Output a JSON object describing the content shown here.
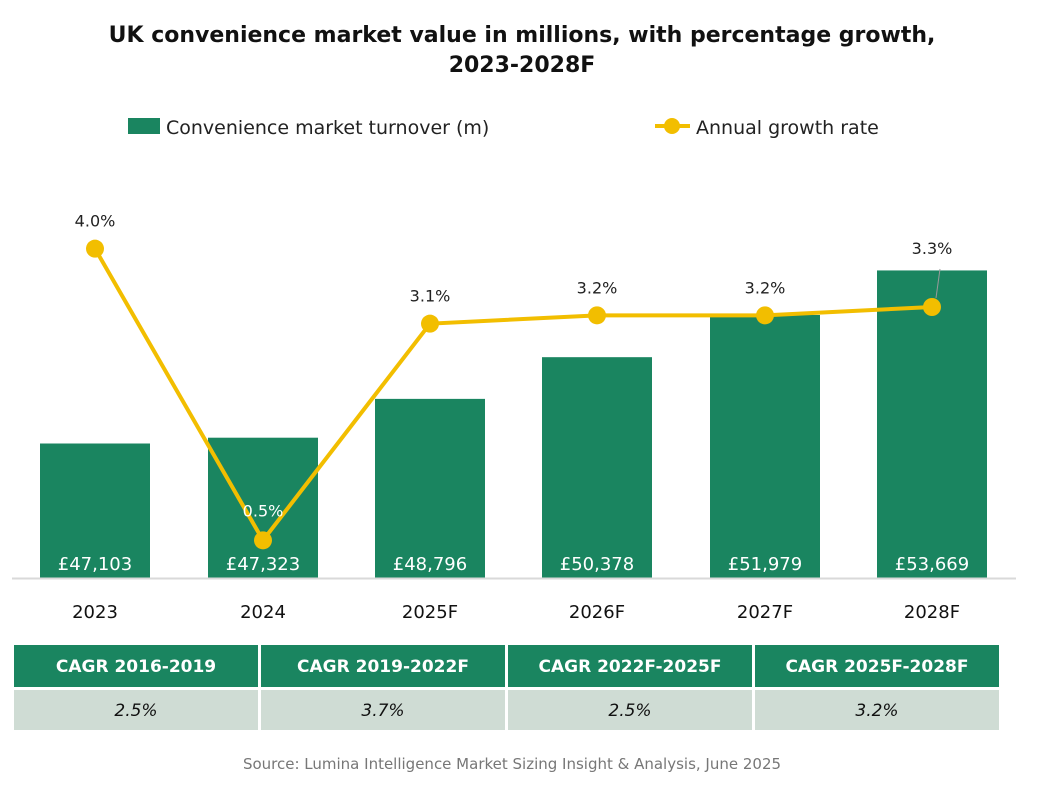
{
  "chart_data": {
    "type": "bar+line",
    "title_line1": "UK convenience market value in millions, with percentage growth,",
    "title_line2": "2023-2028F",
    "categories": [
      "2023",
      "2024",
      "2025F",
      "2026F",
      "2027F",
      "2028F"
    ],
    "series": [
      {
        "name": "Convenience market turnover (m)",
        "type": "bar",
        "axis": "primary",
        "values": [
          47103,
          47323,
          48796,
          50378,
          51979,
          53669
        ],
        "labels": [
          "£47,103",
          "£47,323",
          "£48,796",
          "£50,378",
          "£51,979",
          "£53,669"
        ],
        "color": "#1a8560"
      },
      {
        "name": "Annual growth rate",
        "type": "line",
        "axis": "secondary",
        "values": [
          4.0,
          0.5,
          3.1,
          3.2,
          3.2,
          3.3
        ],
        "labels": [
          "4.0%",
          "0.5%",
          "3.1%",
          "3.2%",
          "3.2%",
          "3.3%"
        ],
        "color": "#f2be00"
      }
    ],
    "primary_ylim": [
      42000,
      56000
    ],
    "secondary_ylim": [
      0,
      4.5
    ],
    "y_axes_visible": false,
    "grid": false,
    "legend_placement": "top"
  },
  "table": {
    "headers": [
      "CAGR 2016-2019",
      "CAGR 2019-2022F",
      "CAGR 2022F-2025F",
      "CAGR 2025F-2028F"
    ],
    "values": [
      "2.5%",
      "3.7%",
      "2.5%",
      "3.2%"
    ],
    "header_color": "#1a8560",
    "row_color": "#cfdcd4"
  },
  "source": "Source: Lumina Intelligence Market Sizing Insight & Analysis,  June 2025"
}
